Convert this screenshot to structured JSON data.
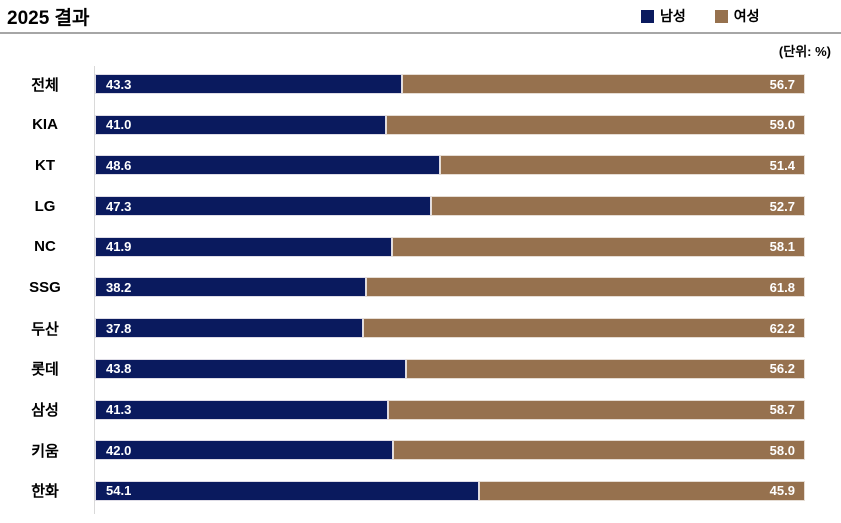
{
  "header": {
    "title": "2025 결과",
    "unit_label": "(단위: %)"
  },
  "colors": {
    "male": "#0a1a5e",
    "female": "#96714e",
    "title_rule": "#a6a6a6",
    "axis": "#d9d9d9"
  },
  "legend": [
    {
      "label": "남성",
      "color": "#0a1a5e"
    },
    {
      "label": "여성",
      "color": "#96714e"
    }
  ],
  "chart_data": {
    "type": "bar",
    "orientation": "horizontal",
    "stacked": true,
    "title": "2025 결과",
    "unit": "%",
    "xlim": [
      0,
      100
    ],
    "grid": false,
    "legend_position": "top-right",
    "value_labels": true,
    "value_decimals": 1,
    "categories": [
      "전체",
      "KIA",
      "KT",
      "LG",
      "NC",
      "SSG",
      "두산",
      "롯데",
      "삼성",
      "키움",
      "한화"
    ],
    "series": [
      {
        "name": "남성",
        "color": "#0a1a5e",
        "values": [
          43.3,
          41.0,
          48.6,
          47.3,
          41.9,
          38.2,
          37.8,
          43.8,
          41.3,
          42.0,
          54.1
        ]
      },
      {
        "name": "여성",
        "color": "#96714e",
        "values": [
          56.7,
          59.0,
          51.4,
          52.7,
          58.1,
          61.8,
          62.2,
          56.2,
          58.7,
          58.0,
          45.9
        ]
      }
    ]
  }
}
